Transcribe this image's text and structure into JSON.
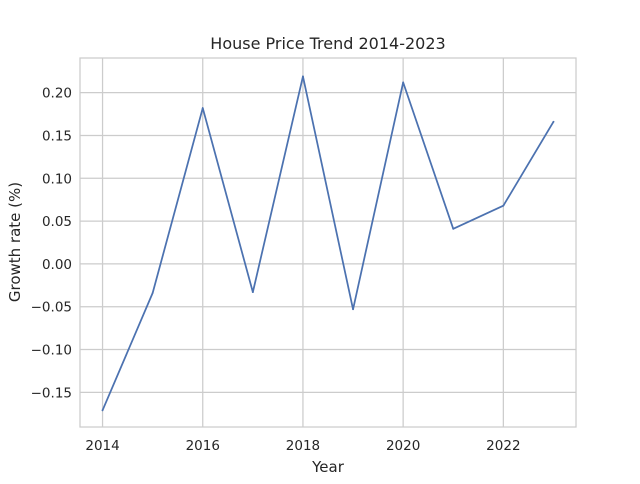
{
  "chart_data": {
    "type": "line",
    "title": "House Price Trend 2014-2023",
    "xlabel": "Year",
    "ylabel": "Growth rate (%)",
    "xlim": [
      2013.55,
      2023.45
    ],
    "ylim": [
      -0.1905,
      0.2405
    ],
    "x_ticks": [
      "2014",
      "2016",
      "2018",
      "2020",
      "2022"
    ],
    "y_ticks": [
      "−0.15",
      "−0.10",
      "−0.05",
      "0.00",
      "0.05",
      "0.10",
      "0.15",
      "0.20"
    ],
    "grid": true,
    "x": [
      2014,
      2015,
      2016,
      2017,
      2018,
      2019,
      2020,
      2021,
      2022,
      2023
    ],
    "series": [
      {
        "values": [
          -0.171,
          -0.034,
          0.182,
          -0.033,
          0.219,
          -0.053,
          0.212,
          0.041,
          0.068,
          0.166
        ],
        "color": "#4c72b0"
      }
    ],
    "colors": {
      "grid": "#cccccc",
      "frame": "#cccccc",
      "text": "#262626",
      "background": "#ffffff"
    }
  }
}
